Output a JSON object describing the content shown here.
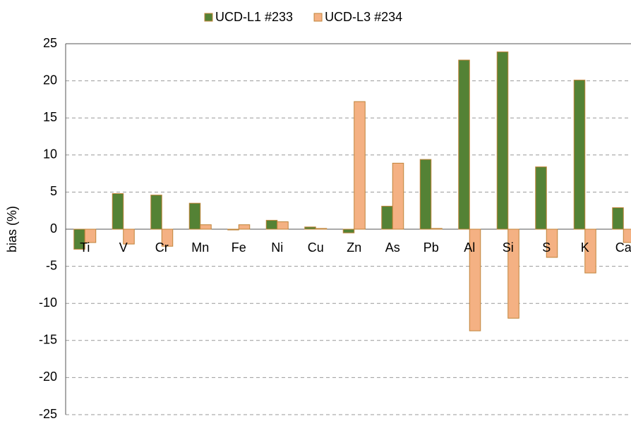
{
  "chart_data": {
    "type": "bar",
    "y_label": "bias (%)",
    "categories": [
      "Ti",
      "V",
      "Cr",
      "Mn",
      "Fe",
      "Ni",
      "Cu",
      "Zn",
      "As",
      "Pb",
      "Al",
      "Si",
      "S",
      "K",
      "Ca"
    ],
    "series": [
      {
        "name": "UCD-L1 #233",
        "color": "#548235",
        "values": [
          -2.7,
          4.8,
          4.6,
          3.5,
          -0.1,
          1.2,
          0.3,
          -0.5,
          3.1,
          9.4,
          22.8,
          23.9,
          8.4,
          20.1,
          2.9
        ]
      },
      {
        "name": "UCD-L3 #234",
        "color": "#f4b183",
        "values": [
          -1.8,
          -2.0,
          -2.3,
          0.6,
          0.6,
          1.0,
          0.1,
          17.2,
          8.9,
          0.1,
          -13.7,
          -12.0,
          -3.8,
          -5.9,
          -1.8
        ]
      }
    ],
    "ylim": [
      -25,
      25
    ],
    "yticks": [
      -25,
      -20,
      -15,
      -10,
      -5,
      0,
      5,
      10,
      15,
      20,
      25
    ],
    "grid": true,
    "legend": "top"
  }
}
